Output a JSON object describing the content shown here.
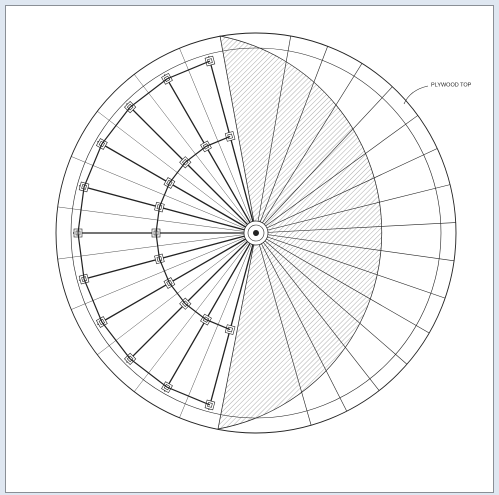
{
  "annotation": {
    "label": "PLYWOOD TOP"
  }
}
